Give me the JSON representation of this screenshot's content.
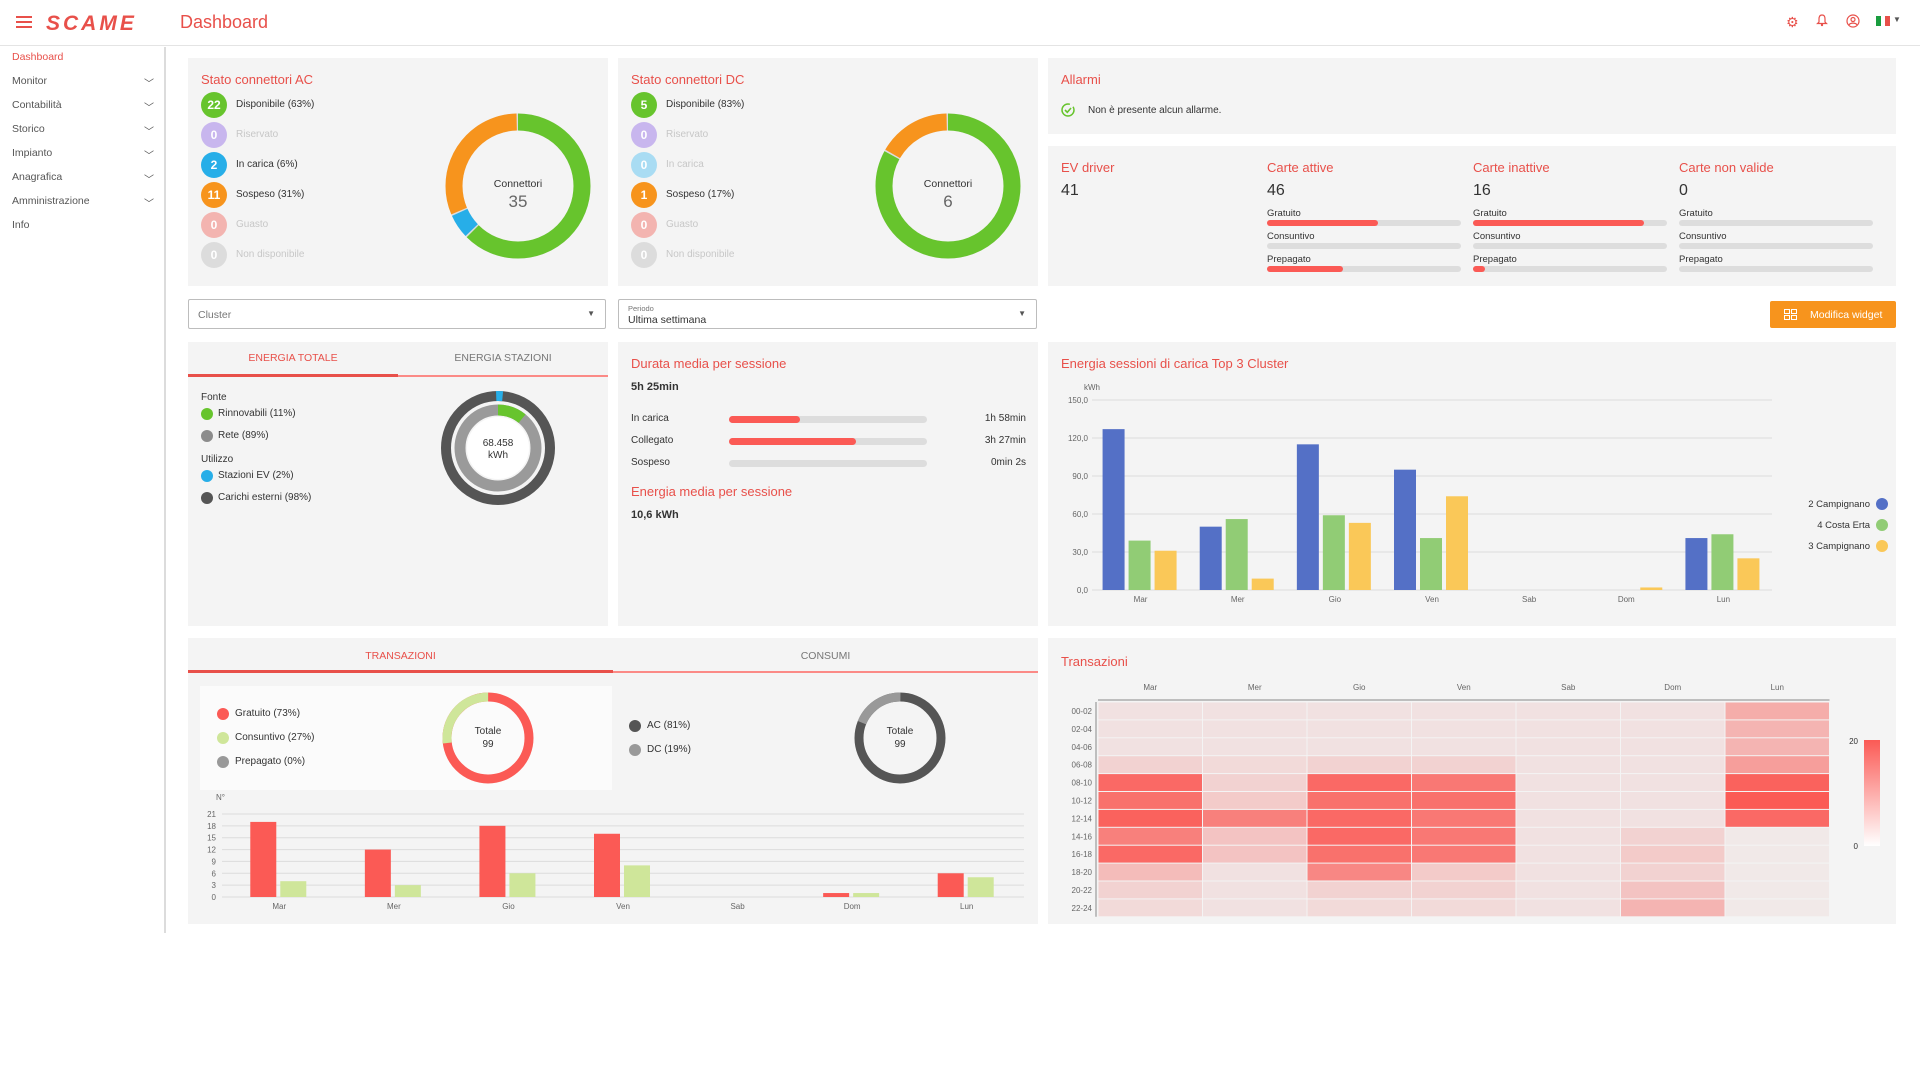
{
  "header": {
    "logo": "SCAME",
    "title": "Dashboard",
    "flag": "🇮🇹"
  },
  "colors": {
    "accent": "#e8504a",
    "green": "#67c42d",
    "orange": "#f7941d",
    "blue": "#27aee8",
    "red": "#fb5a55"
  },
  "sidebar": {
    "items": [
      {
        "label": "Dashboard",
        "active": true,
        "chevron": false
      },
      {
        "label": "Monitor",
        "chevron": true
      },
      {
        "label": "Contabilità",
        "chevron": true
      },
      {
        "label": "Storico",
        "chevron": true
      },
      {
        "label": "Impianto",
        "chevron": true
      },
      {
        "label": "Anagrafica",
        "chevron": true
      },
      {
        "label": "Amministrazione",
        "chevron": true
      },
      {
        "label": "Info",
        "chevron": false
      }
    ]
  },
  "ac": {
    "title": "Stato connettori AC",
    "center_label": "Connettori",
    "center_value": "35",
    "items": [
      {
        "count": "22",
        "label": "Disponibile (63%)",
        "color": "#67c42d",
        "muted": false
      },
      {
        "count": "0",
        "label": "Riservato",
        "color": "#c8b6ee",
        "muted": true
      },
      {
        "count": "2",
        "label": "In carica (6%)",
        "color": "#27aee8",
        "muted": false
      },
      {
        "count": "11",
        "label": "Sospeso (31%)",
        "color": "#f7941d",
        "muted": false
      },
      {
        "count": "0",
        "label": "Guasto",
        "color": "#f3b4b0",
        "muted": true
      },
      {
        "count": "0",
        "label": "Non disponibile",
        "color": "#dcdcdc",
        "muted": true
      }
    ],
    "donut": [
      {
        "value": 22,
        "color": "#67c42d"
      },
      {
        "value": 2,
        "color": "#27aee8"
      },
      {
        "value": 11,
        "color": "#f7941d"
      }
    ]
  },
  "dc": {
    "title": "Stato connettori DC",
    "center_label": "Connettori",
    "center_value": "6",
    "items": [
      {
        "count": "5",
        "label": "Disponibile (83%)",
        "color": "#67c42d",
        "muted": false
      },
      {
        "count": "0",
        "label": "Riservato",
        "color": "#c8b6ee",
        "muted": true
      },
      {
        "count": "0",
        "label": "In carica",
        "color": "#a9dcf3",
        "muted": true
      },
      {
        "count": "1",
        "label": "Sospeso (17%)",
        "color": "#f7941d",
        "muted": false
      },
      {
        "count": "0",
        "label": "Guasto",
        "color": "#f3b4b0",
        "muted": true
      },
      {
        "count": "0",
        "label": "Non disponibile",
        "color": "#dcdcdc",
        "muted": true
      }
    ],
    "donut": [
      {
        "value": 5,
        "color": "#67c42d"
      },
      {
        "value": 1,
        "color": "#f7941d"
      }
    ]
  },
  "alarms": {
    "title": "Allarmi",
    "message": "Non è presente alcun allarme."
  },
  "stats": [
    {
      "title": "EV driver",
      "value": "41",
      "bars": []
    },
    {
      "title": "Carte attive",
      "value": "46",
      "bars": [
        {
          "label": "Gratuito",
          "fill": 0.57
        },
        {
          "label": "Consuntivo",
          "fill": 0.0
        },
        {
          "label": "Prepagato",
          "fill": 0.39
        }
      ]
    },
    {
      "title": "Carte inattive",
      "value": "16",
      "bars": [
        {
          "label": "Gratuito",
          "fill": 0.88
        },
        {
          "label": "Consuntivo",
          "fill": 0.0
        },
        {
          "label": "Prepagato",
          "fill": 0.06
        }
      ]
    },
    {
      "title": "Carte non valide",
      "value": "0",
      "bars": [
        {
          "label": "Gratuito",
          "fill": 0
        },
        {
          "label": "Consuntivo",
          "fill": 0
        },
        {
          "label": "Prepagato",
          "fill": 0
        }
      ]
    }
  ],
  "filters": {
    "cluster_placeholder": "Cluster",
    "period_label": "Periodo",
    "period_value": "Ultima settimana"
  },
  "modify_widget": "Modifica widget",
  "energy": {
    "tabs": [
      "ENERGIA TOTALE",
      "ENERGIA STAZIONI"
    ],
    "fonte": "Fonte",
    "utilizzo": "Utilizzo",
    "fonte_items": [
      {
        "label": "Rinnovabili (11%)",
        "color": "#67c42d"
      },
      {
        "label": "Rete (89%)",
        "color": "#8c8c8c"
      }
    ],
    "utilizzo_items": [
      {
        "label": "Stazioni EV (2%)",
        "color": "#27aee8"
      },
      {
        "label": "Carichi esterni (98%)",
        "color": "#555555"
      }
    ],
    "center_value": "68.458",
    "center_unit": "kWh"
  },
  "duration": {
    "title": "Durata media per sessione",
    "total": "5h 25min",
    "rows": [
      {
        "label": "In carica",
        "value": "1h 58min",
        "fill": 0.36
      },
      {
        "label": "Collegato",
        "value": "3h 27min",
        "fill": 0.64
      },
      {
        "label": "Sospeso",
        "value": "0min 2s",
        "fill": 0.0
      }
    ],
    "energy_title": "Energia media per sessione",
    "energy_value": "10,6 kWh"
  },
  "top3": {
    "title": "Energia sessioni di carica Top 3 Cluster"
  },
  "trans": {
    "tabs": [
      "TRANSAZIONI",
      "CONSUMI"
    ],
    "legend1": [
      {
        "label": "Gratuito (73%)",
        "color": "#fb5a55"
      },
      {
        "label": "Consuntivo (27%)",
        "color": "#cfe69a"
      },
      {
        "label": "Prepagato (0%)",
        "color": "#999999"
      }
    ],
    "legend2": [
      {
        "label": "AC (81%)",
        "color": "#555555"
      },
      {
        "label": "DC (19%)",
        "color": "#999999"
      }
    ],
    "total_label": "Totale",
    "total_value": "99",
    "total2_label": "Totale",
    "total2_value": "99"
  },
  "heat": {
    "title": "Transazioni",
    "days": [
      "Mar",
      "Mer",
      "Gio",
      "Ven",
      "Sab",
      "Dom",
      "Lun"
    ],
    "hours": [
      "00-02",
      "02-04",
      "04-06",
      "06-08",
      "08-10",
      "10-12",
      "12-14",
      "14-16",
      "16-18",
      "18-20",
      "20-22",
      "22-24"
    ],
    "values": [
      [
        2,
        2,
        2,
        2,
        2,
        2,
        9
      ],
      [
        2,
        2,
        2,
        2,
        2,
        2,
        8
      ],
      [
        2,
        2,
        2,
        2,
        2,
        2,
        8
      ],
      [
        4,
        3,
        4,
        4,
        2,
        2,
        11
      ],
      [
        18,
        4,
        18,
        16,
        2,
        2,
        19
      ],
      [
        17,
        5,
        17,
        17,
        2,
        2,
        20
      ],
      [
        19,
        15,
        18,
        16,
        2,
        2,
        18
      ],
      [
        15,
        6,
        18,
        16,
        2,
        4,
        1
      ],
      [
        18,
        6,
        17,
        16,
        2,
        5,
        1
      ],
      [
        7,
        2,
        14,
        5,
        2,
        4,
        1
      ],
      [
        4,
        2,
        4,
        4,
        2,
        6,
        1
      ],
      [
        3,
        2,
        3,
        3,
        2,
        8,
        1
      ]
    ],
    "scale_max": "20",
    "scale_min": "0"
  },
  "chart_data": [
    {
      "type": "bar",
      "title": "Energia sessioni di carica Top 3 Cluster",
      "ylabel": "kWh",
      "ylim": [
        0,
        150
      ],
      "yticks": [
        "150,0",
        "120,0",
        "90,0",
        "60,0",
        "30,0",
        "0,0"
      ],
      "categories": [
        "Mar",
        "Mer",
        "Gio",
        "Ven",
        "Sab",
        "Dom",
        "Lun"
      ],
      "series": [
        {
          "name": "2 Campignano",
          "color": "#5470c6",
          "values": [
            127,
            50,
            115,
            95,
            0,
            0,
            41
          ]
        },
        {
          "name": "4 Costa Erta",
          "color": "#91cc75",
          "values": [
            39,
            56,
            59,
            41,
            0,
            0,
            44
          ]
        },
        {
          "name": "3 Campignano",
          "color": "#fac858",
          "values": [
            31,
            9,
            53,
            74,
            0,
            2,
            25
          ]
        }
      ]
    },
    {
      "type": "bar",
      "ylabel": "N°",
      "ylim": [
        0,
        21
      ],
      "yticks": [
        "21",
        "18",
        "15",
        "12",
        "9",
        "6",
        "3",
        "0"
      ],
      "categories": [
        "Mar",
        "Mer",
        "Gio",
        "Ven",
        "Sab",
        "Dom",
        "Lun"
      ],
      "series": [
        {
          "name": "Gratuito",
          "color": "#fb5a55",
          "values": [
            19,
            12,
            18,
            16,
            0,
            1,
            6
          ]
        },
        {
          "name": "Consuntivo",
          "color": "#cfe69a",
          "values": [
            4,
            3,
            6,
            8,
            0,
            1,
            5
          ]
        }
      ]
    }
  ]
}
